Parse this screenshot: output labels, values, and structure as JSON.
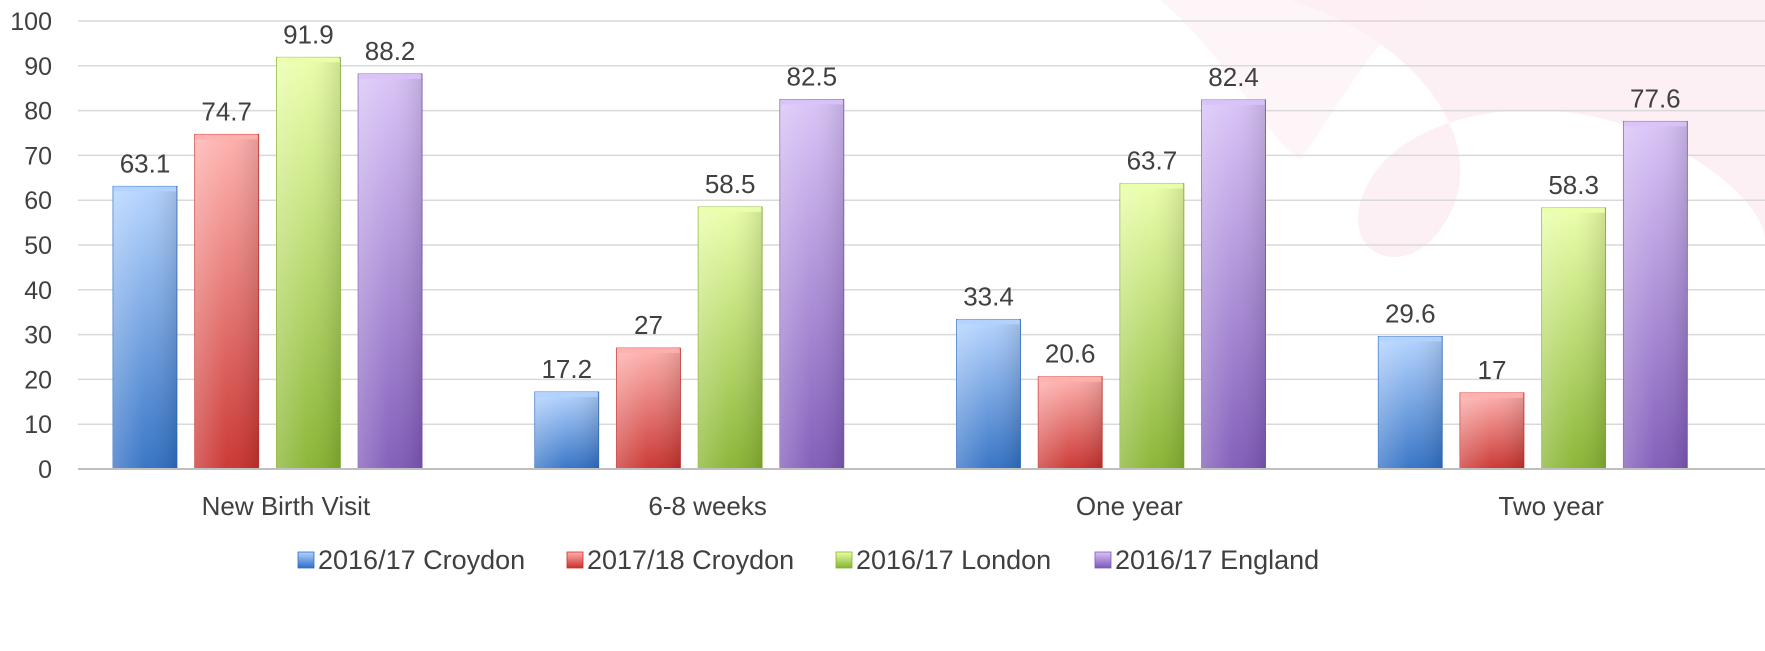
{
  "chart_data": {
    "type": "bar",
    "title": "",
    "xlabel": "",
    "ylabel": "",
    "ylim": [
      0,
      100
    ],
    "yticks": [
      0,
      10,
      20,
      30,
      40,
      50,
      60,
      70,
      80,
      90,
      100
    ],
    "grid": true,
    "legend_position": "bottom",
    "categories": [
      "New Birth Visit",
      "6-8 weeks",
      "One year",
      "Two year"
    ],
    "series": [
      {
        "name": "2016/17 Croydon",
        "values": [
          63.1,
          17.2,
          33.4,
          29.6
        ],
        "labels": [
          "63.1",
          "17.2",
          "33.4",
          "29.6"
        ],
        "color_light": "#b3d3ff",
        "color_dark": "#2f6fc4"
      },
      {
        "name": "2017/18 Croydon",
        "values": [
          74.7,
          27,
          20.6,
          17
        ],
        "labels": [
          "74.7",
          "27",
          "20.6",
          "17"
        ],
        "color_light": "#ffb0ad",
        "color_dark": "#c9302c"
      },
      {
        "name": "2016/17 London",
        "values": [
          91.9,
          58.5,
          63.7,
          58.3
        ],
        "labels": [
          "91.9",
          "58.5",
          "63.7",
          "58.3"
        ],
        "color_light": "#eaffa8",
        "color_dark": "#86b32f"
      },
      {
        "name": "2016/17 England",
        "values": [
          88.2,
          82.5,
          82.4,
          77.6
        ],
        "labels": [
          "88.2",
          "82.5",
          "82.4",
          "77.6"
        ],
        "color_light": "#d8c2f7",
        "color_dark": "#7e58b8"
      }
    ]
  }
}
